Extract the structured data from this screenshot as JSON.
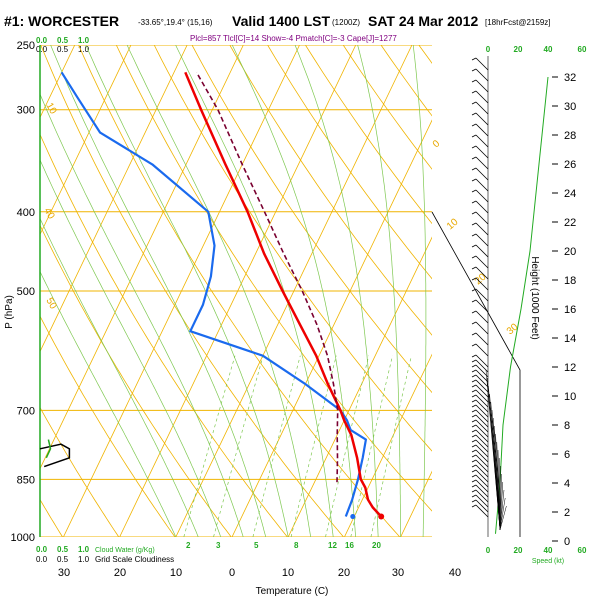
{
  "header": {
    "station": "#1: WORCESTER",
    "coords": "-33.65°,19.4° (15,16)",
    "valid": "Valid 1400 LST",
    "utc": "(1200Z)",
    "date": "SAT 24 Mar 2012",
    "forecast": "[18hrFcst@2159z]",
    "indices": "Plcl=857 Tlcl[C]=14 Show=-4 Pmatch[C]=-3 Cape[J]=1277"
  },
  "colors": {
    "isobar": "#f0b400",
    "dry_adiabat": "#f0b400",
    "moist_adiabat": "#7ec850",
    "mixing_ratio": "#7ec850",
    "temperature": "#ee0000",
    "dewpoint": "#1a6aee",
    "parcel": "#7a0030",
    "cloud": "#000000",
    "green_axis": "#22aa22",
    "wind_speed": "#22aa22"
  },
  "chart_data": {
    "type": "line",
    "chart_kind": "skew-T log-P sounding",
    "xlabel": "Temperature (C)",
    "ylabel": "P (hPa)",
    "y2label": "Height (1000 Feet)",
    "y_scale": "log",
    "x_tick_labels": [
      "30",
      "20",
      "10",
      "0",
      "10",
      "20",
      "30",
      "40"
    ],
    "pressure_ticks": [
      "250",
      "300",
      "400",
      "500",
      "700",
      "850",
      "1000"
    ],
    "height_ticks": [
      "0",
      "2",
      "4",
      "6",
      "8",
      "10",
      "12",
      "14",
      "16",
      "18",
      "20",
      "22",
      "24",
      "26",
      "28",
      "30",
      "32"
    ],
    "cloud_axis": {
      "title_bottom": "Cloud Water (g/Kg)",
      "title_bottom2": "Grid Scale Cloudiness",
      "green_ticks": [
        "0.0",
        "0.5",
        "1.0"
      ],
      "black_ticks": [
        "0.0",
        "0.5",
        "1.0"
      ]
    },
    "wind_axis": {
      "label": "Speed (kt)",
      "ticks": [
        "0",
        "20",
        "40",
        "60"
      ],
      "top_label_0": "0",
      "top_label_20": "20"
    },
    "dry_adiabat_labels": [
      "10",
      "0",
      "10",
      "20",
      "30",
      "40",
      "50"
    ],
    "mixing_ratio_labels": [
      "2",
      "3",
      "5",
      "8",
      "12",
      "16",
      "20"
    ],
    "series": [
      {
        "name": "Temperature",
        "pressure": [
          944,
          920,
          900,
          870,
          850,
          800,
          750,
          720,
          700,
          650,
          600,
          550,
          500,
          450,
          400,
          350,
          300,
          270
        ],
        "temperature": [
          24.8,
          22.5,
          21,
          19.5,
          18,
          15.5,
          12.5,
          10,
          8.5,
          4,
          -0.5,
          -6,
          -12,
          -18.5,
          -25,
          -33,
          -42,
          -48
        ]
      },
      {
        "name": "Dewpoint",
        "pressure": [
          944,
          900,
          850,
          800,
          760,
          740,
          720,
          700,
          650,
          600,
          560,
          520,
          480,
          440,
          400,
          350,
          320,
          290,
          270
        ],
        "temperature": [
          18.5,
          18.2,
          17.5,
          16.5,
          15.5,
          12,
          10.5,
          8.5,
          0,
          -10,
          -25,
          -25,
          -26,
          -28,
          -32,
          -46,
          -58,
          -65,
          -70
        ]
      },
      {
        "name": "Parcel",
        "pressure": [
          857,
          800,
          750,
          700,
          650,
          600,
          550,
          500,
          450,
          400,
          350,
          300,
          270
        ],
        "temperature": [
          14,
          12,
          10,
          8,
          5,
          1.5,
          -3,
          -8.5,
          -15,
          -22,
          -30,
          -39,
          -46
        ]
      }
    ],
    "cloud_water": [
      {
        "pressure": 760,
        "value": 0.2
      },
      {
        "pressure": 780,
        "value": 0.25
      },
      {
        "pressure": 800,
        "value": 0.15
      }
    ],
    "grid_cloudiness": [
      {
        "pressure": 780,
        "value": 0.0
      },
      {
        "pressure": 770,
        "value": 0.5
      },
      {
        "pressure": 780,
        "value": 0.7
      },
      {
        "pressure": 800,
        "value": 0.7
      },
      {
        "pressure": 820,
        "value": 0.1
      }
    ],
    "wind_speed_profile": [
      {
        "height_kft": 0.5,
        "speed": 5
      },
      {
        "height_kft": 4,
        "speed": 8
      },
      {
        "height_kft": 8,
        "speed": 10
      },
      {
        "height_kft": 12,
        "speed": 15
      },
      {
        "height_kft": 16,
        "speed": 22
      },
      {
        "height_kft": 20,
        "speed": 28
      },
      {
        "height_kft": 26,
        "speed": 34
      },
      {
        "height_kft": 30,
        "speed": 38
      },
      {
        "height_kft": 32,
        "speed": 40
      }
    ]
  }
}
